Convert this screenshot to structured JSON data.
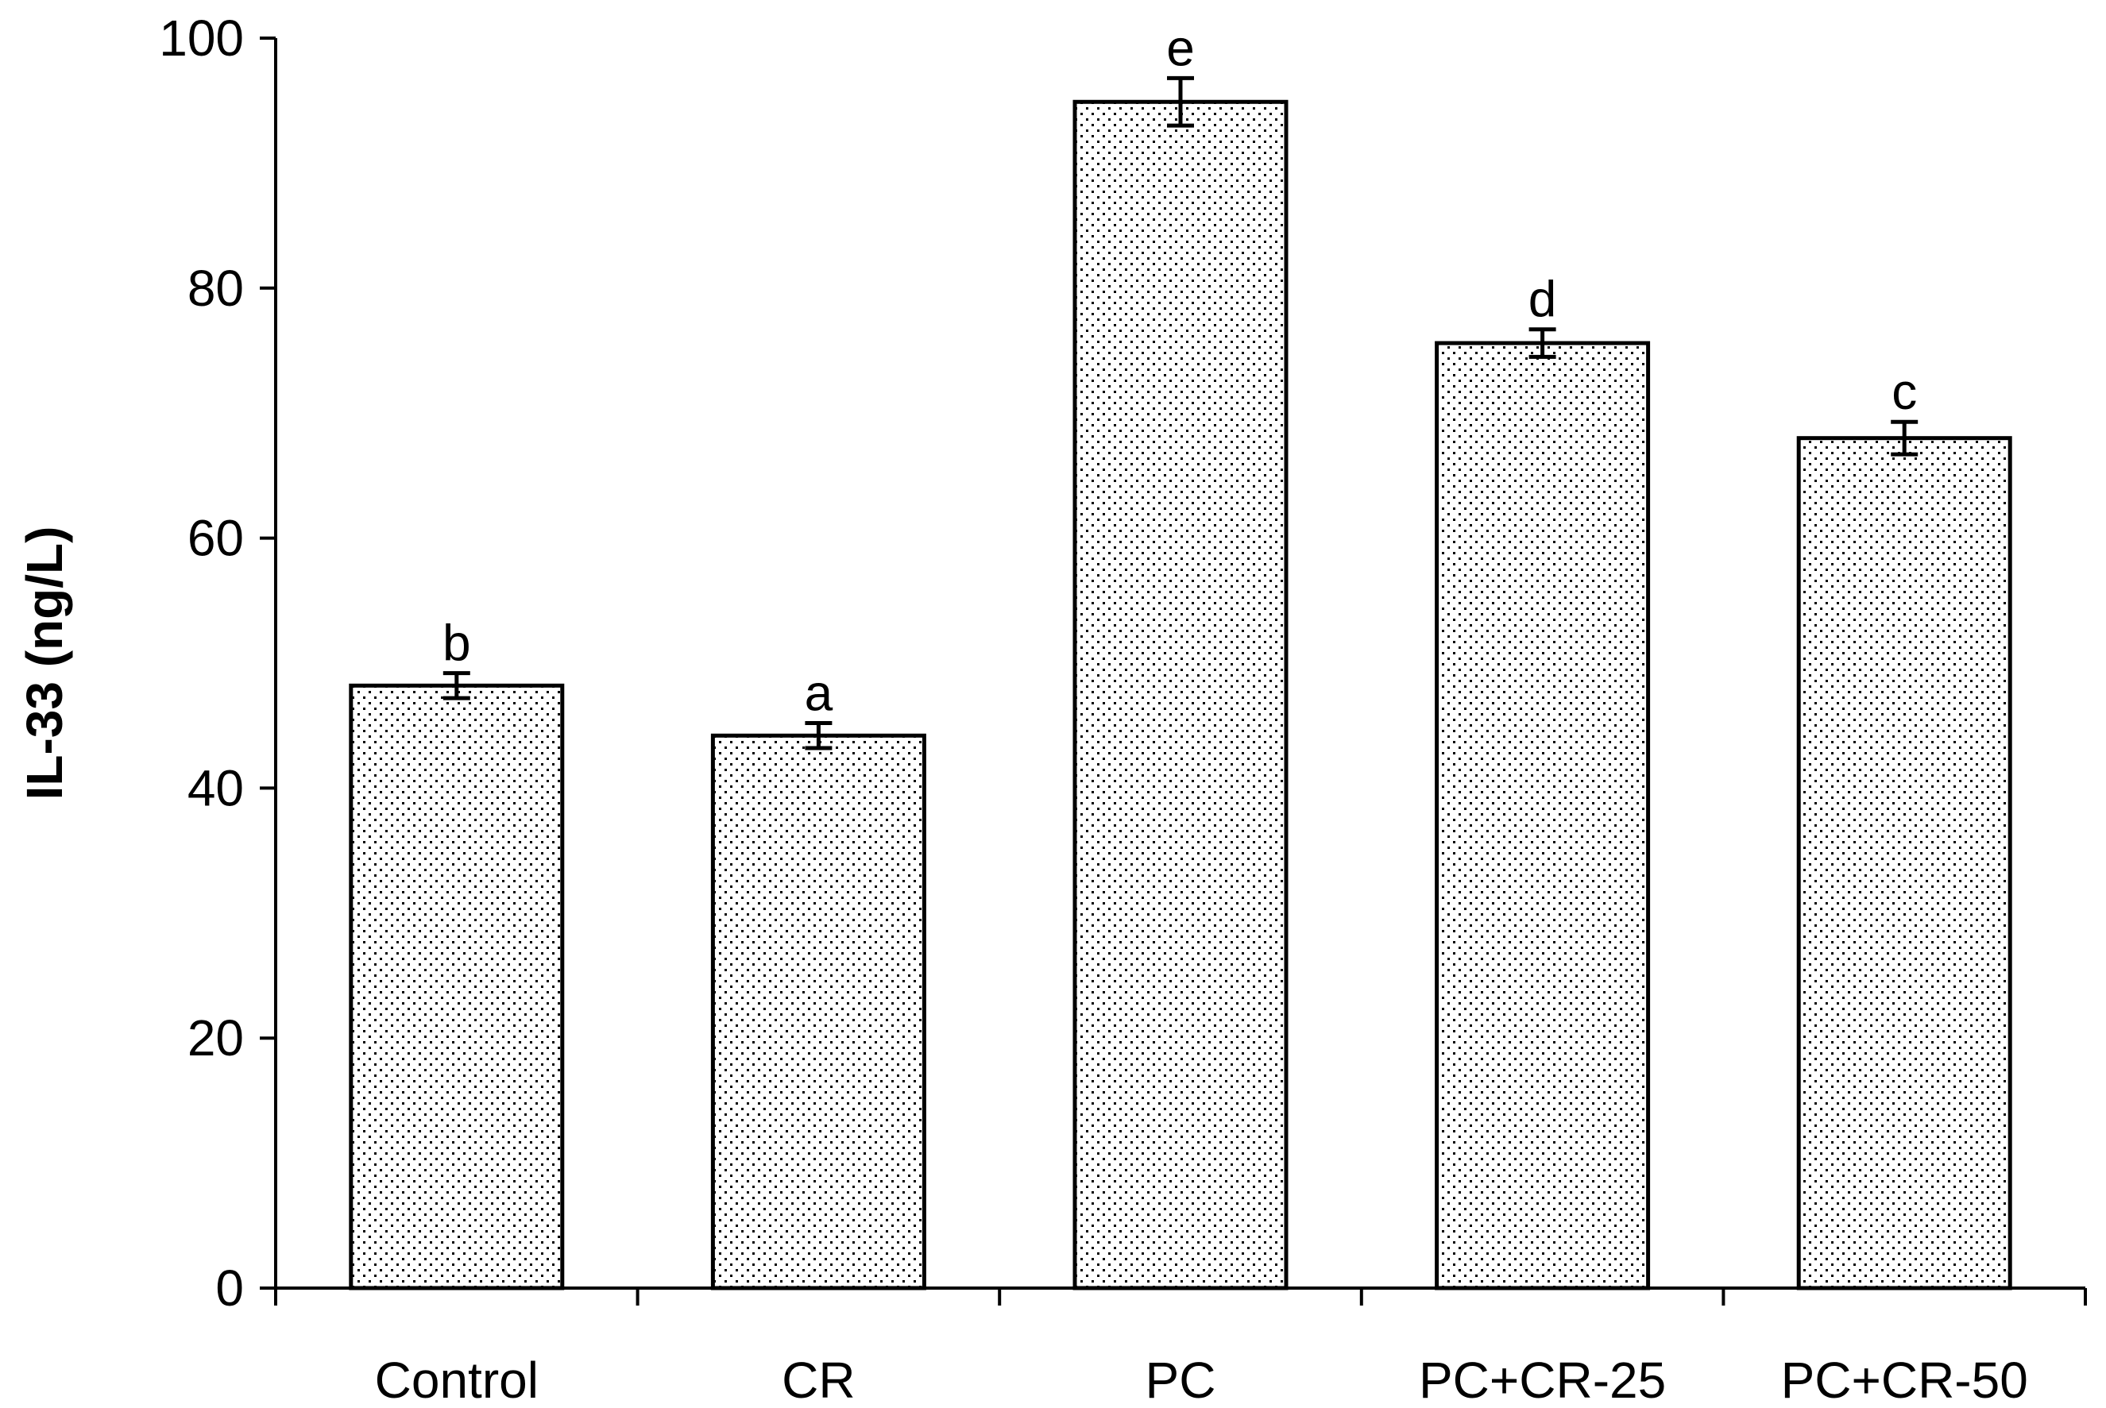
{
  "chart_data": {
    "type": "bar",
    "title": "",
    "xlabel": "",
    "ylabel": "IL-33 (ng/L)",
    "ylim": [
      0,
      100
    ],
    "yticks": [
      0,
      20,
      40,
      60,
      80,
      100
    ],
    "grid": false,
    "legend": "none",
    "categories": [
      "Control",
      "CR",
      "PC",
      "PC+CR-25",
      "PC+CR-50"
    ],
    "values": [
      48.2,
      44.2,
      94.9,
      75.6,
      68.0
    ],
    "errors": [
      1.0,
      1.0,
      1.9,
      1.1,
      1.3
    ],
    "significance_letters": [
      "b",
      "a",
      "e",
      "d",
      "c"
    ],
    "bar_fill": "dotted pattern",
    "colors": {
      "bar_fill": "#ffffff",
      "bar_dots": "#000000",
      "bar_stroke": "#000000",
      "axis": "#000000"
    }
  }
}
